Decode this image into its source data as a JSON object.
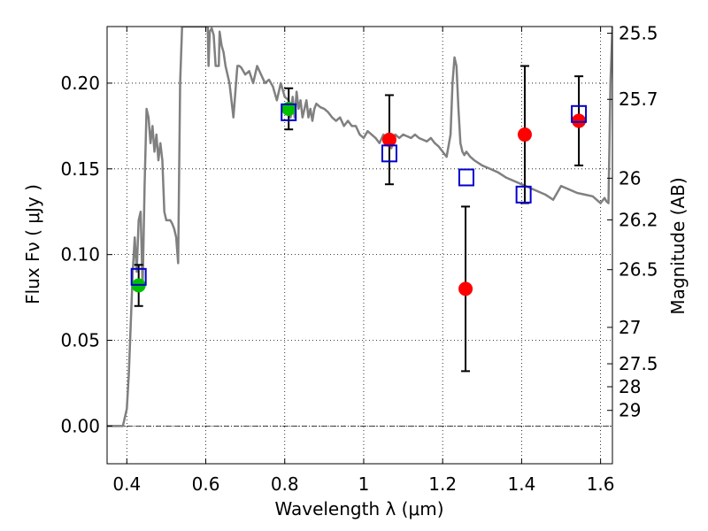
{
  "chart_data": {
    "type": "scatter",
    "xlabel": "Wavelength  λ (μm)",
    "ylabel": "Flux  Fν  ( μJy )",
    "y2label": "Magnitude (AB)",
    "xlim": [
      0.35,
      1.63
    ],
    "ylim": [
      -0.022,
      0.233
    ],
    "grid": true,
    "xticks": [
      {
        "value": 0.4,
        "label": "0.4"
      },
      {
        "value": 0.6,
        "label": "0.6"
      },
      {
        "value": 0.8,
        "label": "0.8"
      },
      {
        "value": 1.0,
        "label": "1"
      },
      {
        "value": 1.2,
        "label": "1.2"
      },
      {
        "value": 1.4,
        "label": "1.4"
      },
      {
        "value": 1.6,
        "label": "1.6"
      }
    ],
    "yticks": [
      {
        "value": 0.0,
        "label": "0.00"
      },
      {
        "value": 0.05,
        "label": "0.05"
      },
      {
        "value": 0.1,
        "label": "0.10"
      },
      {
        "value": 0.15,
        "label": "0.15"
      },
      {
        "value": 0.2,
        "label": "0.20"
      }
    ],
    "y2ticks": [
      {
        "value": 25.5,
        "label": "25.5"
      },
      {
        "value": 25.7,
        "label": "25.7"
      },
      {
        "value": 26.0,
        "label": "26"
      },
      {
        "value": 26.2,
        "label": "26.2"
      },
      {
        "value": 26.5,
        "label": "26.5"
      },
      {
        "value": 27.0,
        "label": "27"
      },
      {
        "value": 27.5,
        "label": "27.5"
      },
      {
        "value": 28.0,
        "label": "28"
      },
      {
        "value": 29.0,
        "label": "29"
      }
    ],
    "series": [
      {
        "kind": "line",
        "color": "#808080",
        "x": [
          0.35,
          0.39,
          0.4,
          0.405,
          0.41,
          0.415,
          0.42,
          0.425,
          0.43,
          0.435,
          0.44,
          0.445,
          0.45,
          0.455,
          0.46,
          0.465,
          0.47,
          0.475,
          0.48,
          0.485,
          0.49,
          0.495,
          0.5,
          0.505,
          0.51,
          0.515,
          0.52,
          0.525,
          0.53,
          0.535,
          0.54,
          0.55,
          0.6,
          0.6025,
          0.605,
          0.607,
          0.61,
          0.615,
          0.62,
          0.625,
          0.63,
          0.633,
          0.635,
          0.64,
          0.645,
          0.65,
          0.66,
          0.665,
          0.67,
          0.675,
          0.68,
          0.685,
          0.69,
          0.7,
          0.71,
          0.72,
          0.73,
          0.74,
          0.75,
          0.76,
          0.77,
          0.78,
          0.79,
          0.8,
          0.81,
          0.815,
          0.82,
          0.825,
          0.83,
          0.835,
          0.84,
          0.845,
          0.85,
          0.855,
          0.86,
          0.865,
          0.87,
          0.875,
          0.88,
          0.89,
          0.9,
          0.91,
          0.92,
          0.93,
          0.94,
          0.95,
          0.96,
          0.97,
          0.98,
          0.99,
          1.0,
          1.01,
          1.02,
          1.03,
          1.04,
          1.05,
          1.06,
          1.07,
          1.08,
          1.09,
          1.1,
          1.11,
          1.12,
          1.13,
          1.14,
          1.15,
          1.16,
          1.17,
          1.18,
          1.19,
          1.2,
          1.21,
          1.22,
          1.225,
          1.23,
          1.235,
          1.24,
          1.245,
          1.25,
          1.255,
          1.26,
          1.27,
          1.28,
          1.3,
          1.32,
          1.34,
          1.36,
          1.38,
          1.4,
          1.42,
          1.44,
          1.46,
          1.48,
          1.5,
          1.52,
          1.54,
          1.56,
          1.58,
          1.6,
          1.61,
          1.615,
          1.62,
          1.625,
          1.63
        ],
        "y": [
          0.0,
          0.0,
          0.01,
          0.03,
          0.06,
          0.09,
          0.11,
          0.09,
          0.12,
          0.125,
          0.08,
          0.14,
          0.185,
          0.18,
          0.165,
          0.175,
          0.16,
          0.17,
          0.155,
          0.165,
          0.155,
          0.125,
          0.12,
          0.12,
          0.12,
          0.118,
          0.115,
          0.11,
          0.095,
          0.2,
          0.233,
          0.233,
          0.233,
          0.233,
          0.233,
          0.21,
          0.23,
          0.232,
          0.228,
          0.21,
          0.21,
          0.21,
          0.23,
          0.222,
          0.218,
          0.21,
          0.2,
          0.19,
          0.18,
          0.195,
          0.21,
          0.21,
          0.209,
          0.205,
          0.207,
          0.2,
          0.21,
          0.205,
          0.2,
          0.202,
          0.198,
          0.19,
          0.2,
          0.192,
          0.19,
          0.18,
          0.192,
          0.18,
          0.195,
          0.185,
          0.19,
          0.18,
          0.185,
          0.19,
          0.18,
          0.185,
          0.178,
          0.185,
          0.188,
          0.186,
          0.185,
          0.183,
          0.18,
          0.178,
          0.18,
          0.175,
          0.178,
          0.175,
          0.175,
          0.17,
          0.168,
          0.172,
          0.17,
          0.168,
          0.165,
          0.17,
          0.166,
          0.162,
          0.17,
          0.168,
          0.17,
          0.169,
          0.168,
          0.17,
          0.168,
          0.167,
          0.166,
          0.168,
          0.165,
          0.163,
          0.16,
          0.157,
          0.17,
          0.2,
          0.215,
          0.21,
          0.185,
          0.165,
          0.16,
          0.158,
          0.16,
          0.157,
          0.155,
          0.152,
          0.15,
          0.148,
          0.145,
          0.143,
          0.141,
          0.139,
          0.137,
          0.135,
          0.132,
          0.14,
          0.138,
          0.136,
          0.135,
          0.134,
          0.13,
          0.133,
          0.131,
          0.13,
          0.2,
          0.233
        ]
      },
      {
        "kind": "markers",
        "marker": "circle",
        "color": "#00c000",
        "x": [
          0.43,
          0.81
        ],
        "y": [
          0.082,
          0.185
        ],
        "err_low": [
          0.012,
          0.012
        ],
        "err_high": [
          0.012,
          0.012
        ]
      },
      {
        "kind": "markers",
        "marker": "circle",
        "color": "#ff0000",
        "x": [
          1.065,
          1.258,
          1.408,
          1.545
        ],
        "y": [
          0.167,
          0.08,
          0.17,
          0.178
        ],
        "err_low": [
          0.026,
          0.048,
          0.04,
          0.026
        ],
        "err_high": [
          0.026,
          0.048,
          0.04,
          0.026
        ]
      },
      {
        "kind": "markers",
        "marker": "open-square",
        "color": "#0000cc",
        "x": [
          0.43,
          0.81,
          1.065,
          1.26,
          1.405,
          1.545
        ],
        "y": [
          0.087,
          0.183,
          0.159,
          0.145,
          0.135,
          0.182
        ]
      }
    ]
  }
}
